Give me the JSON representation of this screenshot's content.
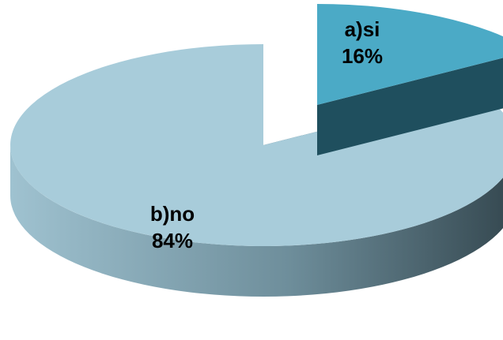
{
  "chart_data": {
    "type": "pie",
    "style": "3d-exploded",
    "categories": [
      "a)si",
      "b)no"
    ],
    "values": [
      16,
      84
    ],
    "percent_labels": [
      "16%",
      "84%"
    ],
    "colors": {
      "a)si": {
        "top": "#4BAAC6",
        "side_light": "#2E6F82",
        "side_dark": "#1F4F5E"
      },
      "b)no": {
        "top": "#A8CCDA",
        "side_light": "#8FB2C0",
        "side_dark": "#3F5A66"
      }
    },
    "legend": "none",
    "title": ""
  }
}
